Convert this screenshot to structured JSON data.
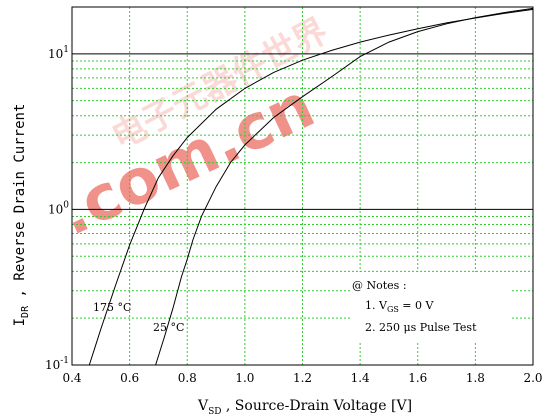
{
  "chart_data": {
    "type": "line",
    "title": "",
    "xlabel": {
      "main": "V",
      "sub": "SD",
      "rest": " , Source-Drain Voltage  [V]"
    },
    "ylabel": {
      "main": "I",
      "sub": "DR",
      "rest": " , Reverse Drain Current"
    },
    "xlim": [
      0.4,
      2.0
    ],
    "ylim": [
      0.1,
      20
    ],
    "yscale": "log",
    "grid": true,
    "x_ticks": [
      "0.4",
      "0.6",
      "0.8",
      "1.0",
      "1.2",
      "1.4",
      "1.6",
      "1.8",
      "2.0"
    ],
    "y_ticks": [
      {
        "value": 0.1,
        "base": "10",
        "exp": "-1"
      },
      {
        "value": 1,
        "base": "10",
        "exp": "0"
      },
      {
        "value": 10,
        "base": "10",
        "exp": "1"
      }
    ],
    "series": [
      {
        "name": "175 °C",
        "points": [
          [
            0.46,
            0.1
          ],
          [
            0.48,
            0.13
          ],
          [
            0.5,
            0.17
          ],
          [
            0.55,
            0.32
          ],
          [
            0.6,
            0.59
          ],
          [
            0.65,
            1.0
          ],
          [
            0.7,
            1.6
          ],
          [
            0.75,
            2.2
          ],
          [
            0.8,
            2.9
          ],
          [
            0.9,
            4.4
          ],
          [
            1.0,
            6.0
          ],
          [
            1.1,
            7.6
          ],
          [
            1.2,
            9.1
          ],
          [
            1.3,
            10.5
          ],
          [
            1.4,
            11.9
          ],
          [
            1.5,
            13.2
          ],
          [
            1.6,
            14.5
          ],
          [
            1.7,
            15.8
          ],
          [
            1.8,
            17.0
          ],
          [
            1.9,
            18.2
          ],
          [
            2.0,
            19.3
          ]
        ]
      },
      {
        "name": "25 °C",
        "points": [
          [
            0.69,
            0.1
          ],
          [
            0.72,
            0.15
          ],
          [
            0.75,
            0.23
          ],
          [
            0.78,
            0.37
          ],
          [
            0.8,
            0.48
          ],
          [
            0.82,
            0.64
          ],
          [
            0.85,
            0.91
          ],
          [
            0.9,
            1.4
          ],
          [
            0.95,
            2.0
          ],
          [
            1.0,
            2.6
          ],
          [
            1.1,
            3.9
          ],
          [
            1.2,
            5.3
          ],
          [
            1.3,
            7.1
          ],
          [
            1.4,
            9.6
          ],
          [
            1.5,
            11.9
          ],
          [
            1.6,
            13.9
          ],
          [
            1.7,
            15.6
          ],
          [
            1.8,
            17.1
          ],
          [
            1.9,
            18.4
          ],
          [
            2.0,
            19.6
          ]
        ]
      }
    ],
    "annotations": {
      "label_175": "175 °C",
      "label_25": "25 °C",
      "notes_title": "@ Notes :",
      "note1": {
        "prefix": "1. V",
        "sub": "GS",
        "rest": " = 0 V"
      },
      "note2": "2. 250 μs Pulse Test"
    }
  },
  "watermark": {
    "text": ".com.cn",
    "chars": "电子元器件世界",
    "color": "#e43a2c"
  },
  "colors": {
    "grid_major": "#000000",
    "grid_minor": "#33cc33",
    "curve": "#000000"
  }
}
